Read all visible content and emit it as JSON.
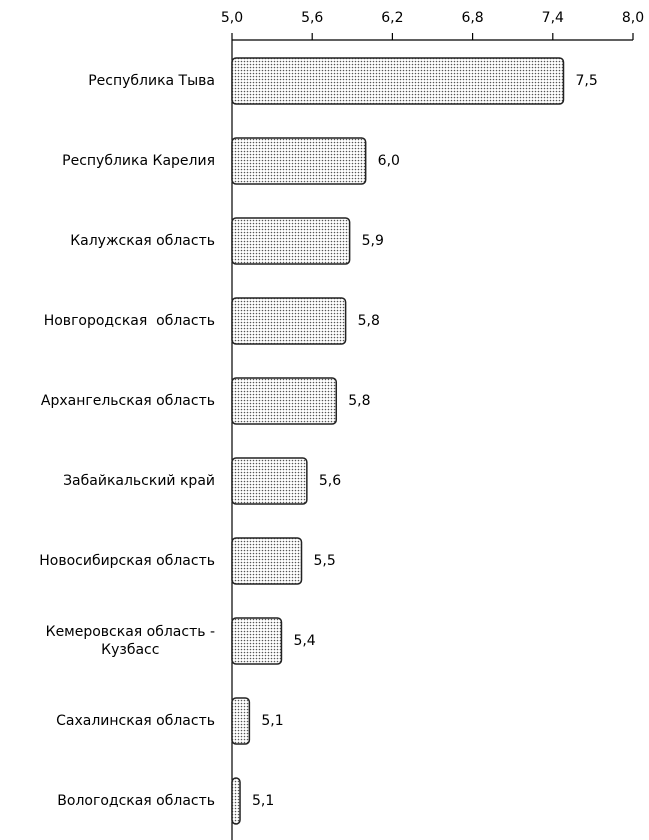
{
  "chart_data": {
    "type": "bar",
    "orientation": "horizontal",
    "categories": [
      "Республика Тыва",
      "Республика Карелия",
      "Калужская область",
      "Новгородская  область",
      "Архангельская область",
      "Забайкальский край",
      "Новосибирская область",
      "Кемеровская область -\nКузбасс",
      "Сахалинская область",
      "Вологодская область"
    ],
    "values": [
      7.48,
      6.0,
      5.88,
      5.85,
      5.78,
      5.56,
      5.52,
      5.37,
      5.13,
      5.06
    ],
    "value_labels": [
      "7,5",
      "6,0",
      "5,9",
      "5,8",
      "5,8",
      "5,6",
      "5,5",
      "5,4",
      "5,1",
      "5,1"
    ],
    "color": "#d9d9d9",
    "xlim": [
      5.0,
      8.0
    ],
    "xticks": [
      {
        "value": 5.0,
        "label": "5,0"
      },
      {
        "value": 5.6,
        "label": "5,6"
      },
      {
        "value": 6.2,
        "label": "6,2"
      },
      {
        "value": 6.8,
        "label": "6,8"
      },
      {
        "value": 7.4,
        "label": "7,4"
      },
      {
        "value": 8.0,
        "label": "8,0"
      }
    ],
    "grid": false
  }
}
